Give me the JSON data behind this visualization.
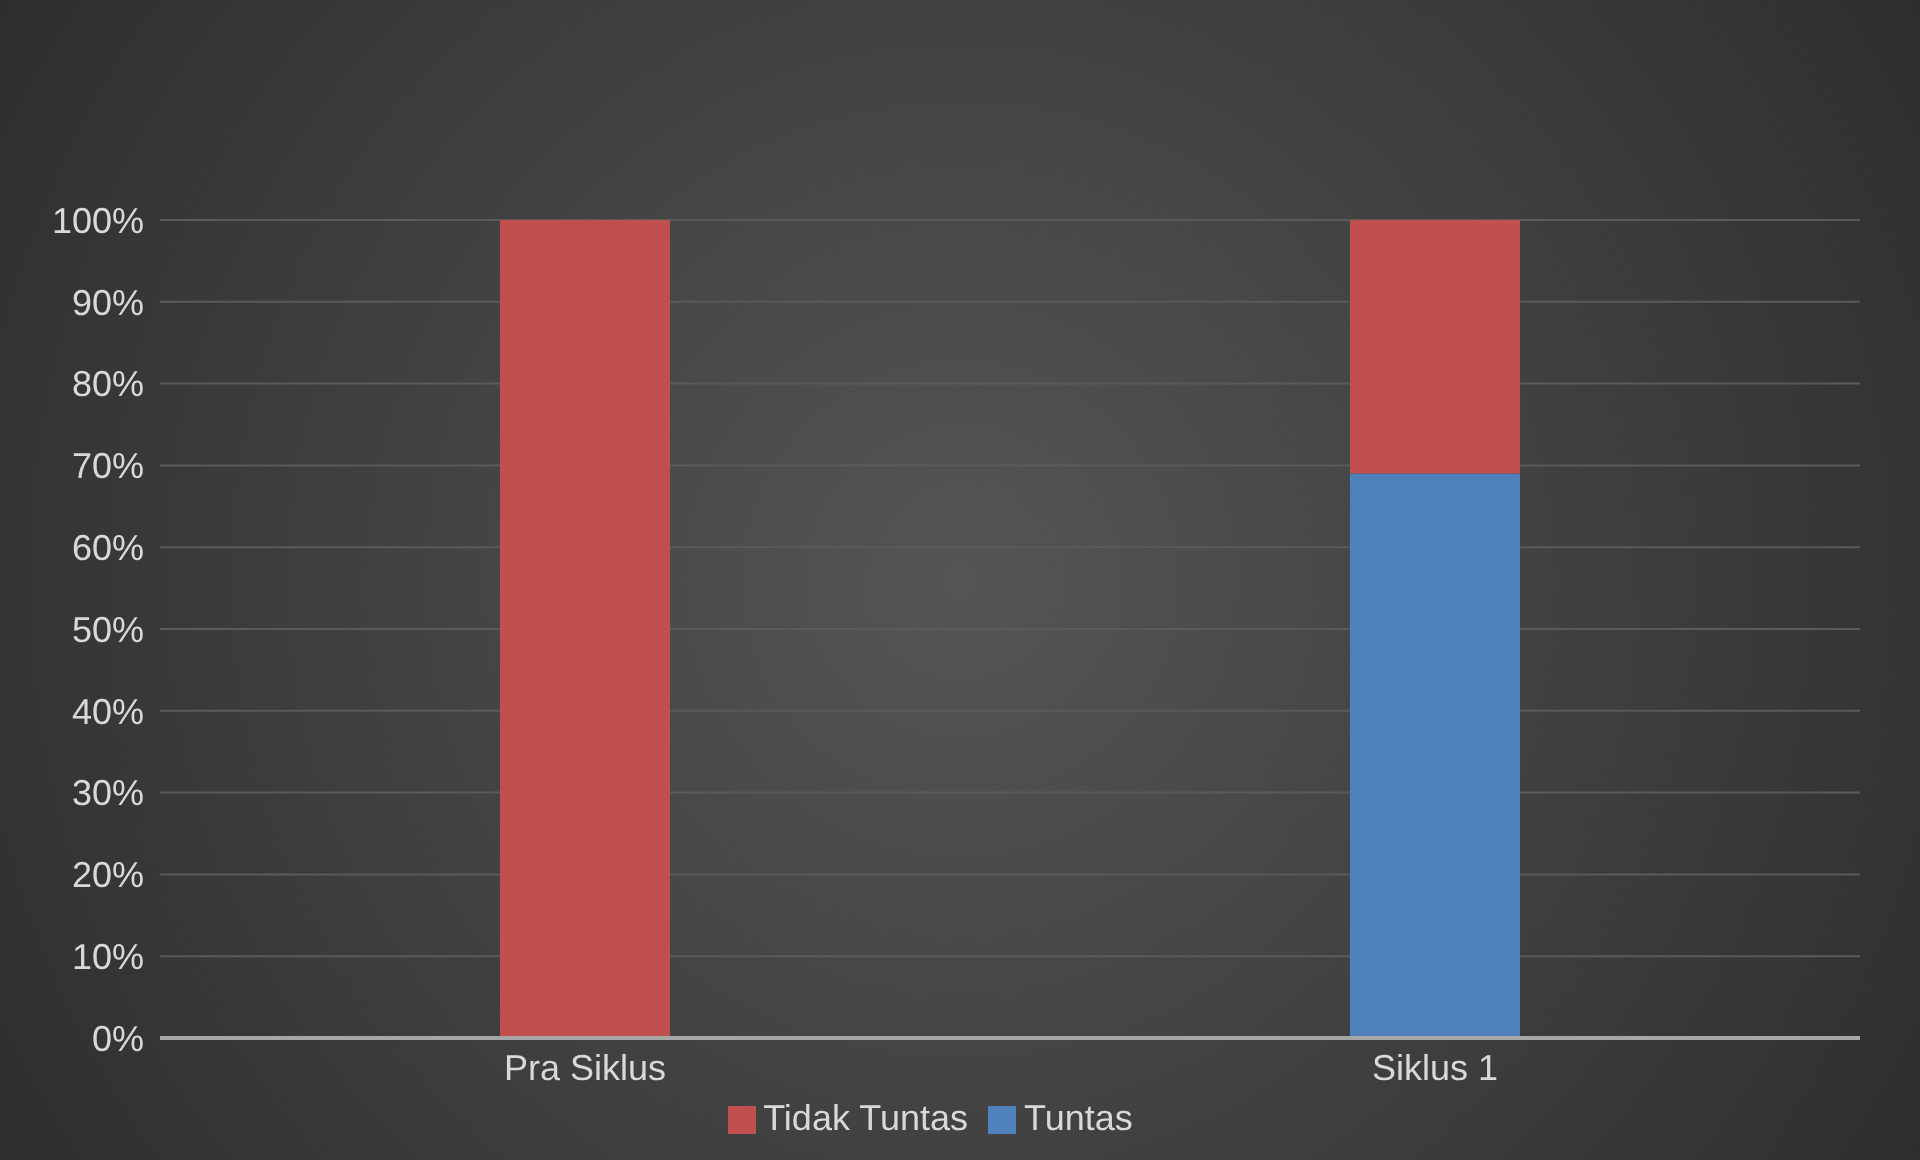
{
  "chart_data": {
    "type": "bar",
    "stacked": true,
    "categories": [
      "Pra Siklus",
      "Siklus 1"
    ],
    "series": [
      {
        "name": "Tuntas",
        "color": "#4f81bd",
        "values": [
          0,
          69
        ]
      },
      {
        "name": "Tidak Tuntas",
        "color": "#c0504d",
        "values": [
          100,
          31
        ]
      }
    ],
    "ylim": [
      0,
      100
    ],
    "yticks": [
      {
        "value": 0,
        "label": "0%"
      },
      {
        "value": 10,
        "label": "10%"
      },
      {
        "value": 20,
        "label": "20%"
      },
      {
        "value": 30,
        "label": "30%"
      },
      {
        "value": 40,
        "label": "40%"
      },
      {
        "value": 50,
        "label": "50%"
      },
      {
        "value": 60,
        "label": "60%"
      },
      {
        "value": 70,
        "label": "70%"
      },
      {
        "value": 80,
        "label": "80%"
      },
      {
        "value": 90,
        "label": "90%"
      },
      {
        "value": 100,
        "label": "100%"
      }
    ],
    "grid": "y",
    "legend": "bottom"
  }
}
